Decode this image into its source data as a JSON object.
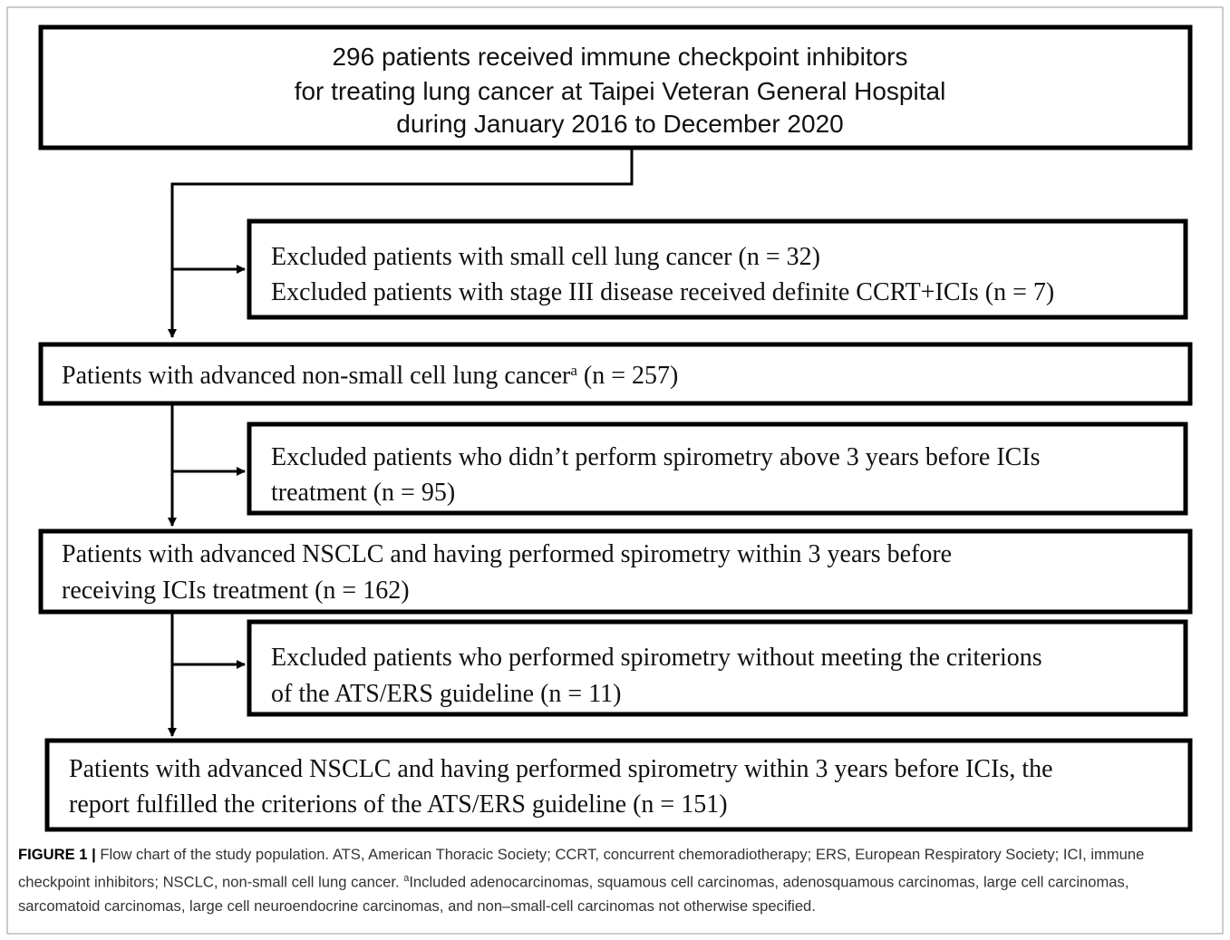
{
  "nodes": [
    {
      "lines": [
        "296 patients received immune checkpoint inhibitors",
        "for treating lung cancer at Taipei Veteran General Hospital",
        "during January 2016 to December 2020"
      ]
    },
    {
      "lines": [
        "Excluded patients with small cell lung cancer (n = 32)",
        "Excluded patients with stage III  disease received definite CCRT+ICIs (n = 7)"
      ]
    },
    {
      "text": "Patients with advanced non-small cell lung cancer",
      "superscript": "a",
      "text_after": " (n = 257)"
    },
    {
      "lines": [
        "Excluded patients who didn’t perform spirometry above 3 years before ICIs",
        "treatment (n = 95)"
      ]
    },
    {
      "lines": [
        "Patients with advanced NSCLC and having performed spirometry within 3 years before",
        "receiving ICIs  treatment (n = 162)"
      ]
    },
    {
      "lines": [
        "Excluded patients who performed spirometry without meeting  the criterions",
        "of the ATS/ERS  guideline (n = 11)"
      ]
    },
    {
      "lines": [
        "Patients with advanced NSCLC and having performed spirometry within 3 years before ICIs, the",
        "report fulfilled the criterions of the ATS/ERS  guideline (n = 151)"
      ]
    }
  ],
  "caption": {
    "label": "FIGURE 1 |",
    "text": " Flow chart of the study population. ATS, American Thoracic Society; CCRT, concurrent chemoradiotherapy; ERS, European Respiratory Society; ICI, immune checkpoint inhibitors; NSCLC, non-small cell lung cancer. ",
    "superscript": "a",
    "text_after": "Included adenocarcinomas, squamous cell carcinomas, adenosquamous carcinomas, large cell carcinomas, sarcomatoid carcinomas, large cell neuroendocrine carcinomas, and non–small-cell carcinomas not otherwise specified."
  }
}
